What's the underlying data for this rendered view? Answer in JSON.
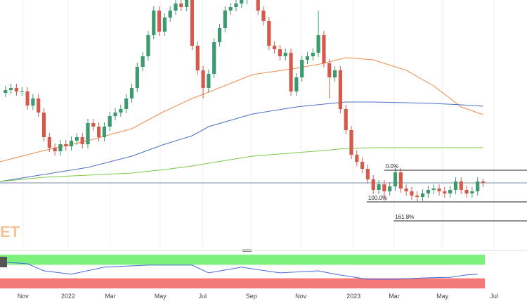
{
  "chart_data": [
    {
      "type": "candlestick",
      "xlim": [
        0,
        96
      ],
      "ylim": [
        0,
        330
      ],
      "xticks": [
        {
          "value": 4.2,
          "label": "Nov"
        },
        {
          "value": 12.4,
          "label": "2022"
        },
        {
          "value": 20.1,
          "label": "Mar"
        },
        {
          "value": 29.2,
          "label": "May"
        },
        {
          "value": 36.9,
          "label": "Jul"
        },
        {
          "value": 45.8,
          "label": "Sep"
        },
        {
          "value": 54.8,
          "label": "Nov"
        },
        {
          "value": 64.4,
          "label": "2023"
        },
        {
          "value": 71.8,
          "label": "Mar"
        },
        {
          "value": 80.6,
          "label": "May"
        },
        {
          "value": 90,
          "label": "Jul"
        }
      ],
      "grid": true,
      "up_color": "#3d9a70",
      "down_color": "#d45a4c",
      "x": [
        1,
        2,
        3,
        4,
        5,
        6,
        7,
        8,
        9,
        10,
        11,
        12,
        13,
        14,
        15,
        16,
        17,
        18,
        19,
        20,
        21,
        22,
        23,
        24,
        25,
        26,
        27,
        28,
        29,
        30,
        31,
        32,
        33,
        34,
        35,
        36,
        37,
        38,
        39,
        40,
        41,
        42,
        43,
        44,
        45,
        46,
        47,
        48,
        49,
        50,
        51,
        52,
        53,
        54,
        55,
        56,
        57,
        58,
        59,
        60,
        61,
        62,
        63,
        64,
        65,
        66,
        67,
        68,
        69,
        70,
        71,
        72,
        73,
        74,
        75,
        76,
        77,
        78,
        79,
        80,
        81,
        82,
        83,
        84,
        85,
        86,
        87,
        88
      ],
      "open": [
        198,
        202,
        205,
        200,
        200,
        180,
        190,
        170,
        135,
        120,
        115,
        125,
        122,
        130,
        135,
        125,
        155,
        150,
        135,
        150,
        165,
        170,
        175,
        190,
        205,
        235,
        250,
        280,
        315,
        285,
        305,
        315,
        325,
        320,
        330,
        265,
        230,
        205,
        225,
        270,
        290,
        315,
        320,
        325,
        330,
        340,
        345,
        315,
        300,
        265,
        260,
        250,
        255,
        200,
        220,
        245,
        250,
        255,
        280,
        240,
        220,
        230,
        175,
        145,
        110,
        100,
        90,
        75,
        60,
        68,
        58,
        65,
        85,
        62,
        58,
        52,
        50,
        55,
        60,
        62,
        58,
        55,
        60,
        72,
        60,
        55,
        58,
        72
      ],
      "high": [
        208,
        211,
        211,
        206,
        206,
        196,
        196,
        176,
        141,
        126,
        131,
        131,
        136,
        141,
        141,
        161,
        161,
        156,
        156,
        171,
        176,
        181,
        196,
        211,
        241,
        256,
        286,
        321,
        321,
        311,
        321,
        331,
        331,
        336,
        336,
        271,
        236,
        231,
        276,
        296,
        321,
        326,
        331,
        336,
        346,
        351,
        351,
        321,
        306,
        271,
        266,
        261,
        261,
        226,
        251,
        256,
        261,
        315,
        286,
        246,
        236,
        236,
        181,
        151,
        116,
        106,
        96,
        81,
        74,
        74,
        71,
        91,
        91,
        68,
        64,
        58,
        61,
        66,
        68,
        68,
        64,
        66,
        78,
        78,
        66,
        64,
        78,
        76
      ],
      "low": [
        192,
        196,
        194,
        194,
        174,
        174,
        164,
        129,
        114,
        109,
        109,
        116,
        116,
        124,
        119,
        119,
        144,
        129,
        129,
        144,
        159,
        164,
        169,
        184,
        199,
        229,
        244,
        274,
        279,
        279,
        299,
        309,
        314,
        314,
        259,
        224,
        190,
        199,
        219,
        264,
        284,
        309,
        314,
        319,
        324,
        334,
        309,
        294,
        259,
        254,
        244,
        244,
        194,
        194,
        214,
        239,
        244,
        249,
        234,
        190,
        214,
        169,
        139,
        104,
        94,
        84,
        69,
        54,
        54,
        45,
        52,
        59,
        56,
        52,
        46,
        44,
        44,
        49,
        54,
        52,
        49,
        49,
        54,
        54,
        49,
        49,
        52,
        64
      ],
      "close": [
        202,
        205,
        200,
        200,
        180,
        190,
        170,
        135,
        120,
        115,
        125,
        122,
        130,
        135,
        125,
        155,
        150,
        135,
        150,
        165,
        170,
        175,
        190,
        205,
        235,
        250,
        280,
        315,
        285,
        305,
        315,
        325,
        320,
        330,
        265,
        230,
        205,
        225,
        270,
        290,
        315,
        320,
        325,
        330,
        340,
        345,
        315,
        300,
        265,
        260,
        250,
        255,
        200,
        220,
        245,
        250,
        255,
        280,
        240,
        220,
        230,
        175,
        145,
        110,
        100,
        90,
        75,
        60,
        68,
        58,
        65,
        85,
        62,
        58,
        52,
        50,
        55,
        60,
        62,
        58,
        55,
        60,
        72,
        60,
        55,
        58,
        72,
        70
      ],
      "lines": [
        {
          "color": "#f0894a",
          "x": [
            0,
            8,
            16,
            24,
            30,
            35,
            38,
            46,
            54,
            59,
            63,
            68,
            74,
            79,
            84,
            88
          ],
          "values": [
            100,
            116,
            130,
            147,
            172,
            190,
            199,
            224,
            233,
            240,
            248,
            245,
            230,
            208,
            178,
            167
          ]
        },
        {
          "color": "#4a6fc4",
          "x": [
            0,
            8,
            16,
            24,
            30,
            35,
            38,
            46,
            54,
            59,
            63,
            68,
            74,
            79,
            84,
            88
          ],
          "values": [
            72,
            82,
            92,
            108,
            125,
            137,
            150,
            168,
            178,
            182,
            185,
            185,
            184,
            183,
            181,
            179
          ]
        },
        {
          "color": "#7cc94a",
          "x": [
            0,
            8,
            16,
            24,
            30,
            35,
            38,
            46,
            54,
            59,
            63,
            68,
            74,
            79,
            84,
            88
          ],
          "values": [
            72,
            78,
            81,
            84,
            89,
            94,
            98,
            108,
            113,
            116,
            119,
            120,
            120,
            120,
            120,
            120
          ]
        }
      ],
      "price_line": 70,
      "price_line_color": "#7b8ea8",
      "fib_levels": [
        {
          "label": "0.0%",
          "value": 88,
          "x_start": 70
        },
        {
          "label": "100.0%",
          "value": 43,
          "x_start": 66.8
        },
        {
          "label": "161.8%",
          "value": 16,
          "x_start": 71.7
        }
      ],
      "watermark": "ET"
    },
    {
      "type": "line",
      "ylim": [
        0,
        100
      ],
      "upper_band": [
        70,
        100
      ],
      "upper_color": "#7ef07e",
      "lower_band": [
        0,
        30
      ],
      "lower_color": "#f47a7a",
      "series": [
        {
          "color": "#4668d8",
          "x": [
            0,
            5,
            8,
            13,
            19,
            27,
            35,
            38,
            44,
            46,
            51,
            58,
            61,
            67,
            72,
            77,
            82,
            85,
            87
          ],
          "values": [
            79,
            73,
            52,
            42,
            63,
            69,
            69,
            46,
            63,
            58,
            46,
            52,
            42,
            27,
            27,
            31,
            33,
            40,
            42
          ]
        }
      ]
    }
  ]
}
